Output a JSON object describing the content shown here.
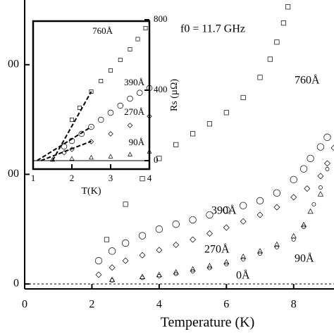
{
  "chart_data": [
    {
      "type": "scatter",
      "xlabel": "Temperature (K)",
      "xlim": [
        0,
        9.2
      ],
      "ylim": [
        0,
        2590
      ],
      "xticks": [
        0,
        2,
        4,
        6,
        8
      ],
      "yticks": [
        {
          "value": 0,
          "label": "0"
        },
        {
          "value": 1000,
          "label": "00"
        },
        {
          "value": 2000,
          "label": "00"
        }
      ],
      "annotations": [
        "f0 = 11.7 GHz",
        "760Å",
        "390Å",
        "270Å",
        "90Å",
        "0Å"
      ],
      "zero_line": 0,
      "series": [
        {
          "name": "760Å",
          "marker": "square",
          "x": [
            2.44,
            3,
            3.5,
            4,
            4.5,
            5,
            5.5,
            6,
            6.5,
            7,
            7.3,
            7.5,
            7.7,
            7.83
          ],
          "values": [
            405,
            727,
            960,
            1145,
            1270,
            1370,
            1460,
            1563,
            1700,
            1884,
            2050,
            2206,
            2380,
            2527
          ]
        },
        {
          "name": "390Å",
          "marker": "circle",
          "x": [
            2.2,
            2.6,
            3,
            3.5,
            4,
            4.5,
            5,
            5.5,
            6,
            6.5,
            7,
            7.5,
            8,
            8.3,
            8.5,
            8.8,
            9
          ],
          "values": [
            212,
            300,
            373,
            440,
            500,
            545,
            585,
            630,
            675,
            715,
            759,
            830,
            952,
            1050,
            1145,
            1250,
            1338
          ]
        },
        {
          "name": "270Å",
          "marker": "diamond",
          "x": [
            2.2,
            2.6,
            3,
            3.5,
            4,
            4.5,
            5,
            5.5,
            6,
            6.5,
            7,
            7.5,
            8,
            8.4,
            8.8,
            9.0,
            9.2
          ],
          "values": [
            84,
            150,
            212,
            262,
            309,
            357,
            405,
            460,
            514,
            570,
            630,
            700,
            791,
            870,
            984,
            1100,
            1241
          ]
        },
        {
          "name": "90Å",
          "marker": "triangle",
          "x": [
            2.6,
            3.5,
            4,
            4.5,
            5,
            5.5,
            6,
            6.5,
            7,
            7.5,
            8,
            8.3,
            8.5,
            8.8
          ],
          "values": [
            39,
            66,
            84,
            108,
            135,
            165,
            200,
            250,
            300,
            360,
            437,
            540,
            662,
            820
          ]
        },
        {
          "name": "0Å",
          "marker": "dot",
          "x": [
            2.6,
            3.5,
            4,
            4.5,
            5,
            5.5,
            6,
            6.5,
            7,
            7.5,
            8,
            8.3,
            8.6,
            8.8,
            9
          ],
          "values": [
            32,
            55,
            71,
            92,
            116,
            145,
            180,
            225,
            277,
            335,
            405,
            520,
            727,
            880,
            1048
          ]
        }
      ]
    },
    {
      "type": "scatter",
      "xlabel": "T(K)",
      "ylabel": "Rs (µΩ)",
      "xlim": [
        1,
        4
      ],
      "ylim": [
        -48,
        792
      ],
      "xticks": [
        1,
        2,
        3,
        4
      ],
      "yticks": [
        0,
        400,
        800
      ],
      "annotations": [
        "760Å",
        "390Å",
        "270Å",
        "90Å"
      ],
      "zero_line": 0,
      "fit_lines": [
        {
          "x": [
            1.5,
            2.5
          ],
          "values": [
            0,
            392
          ]
        },
        {
          "x": [
            1.1,
            2.5
          ],
          "values": [
            0,
            192
          ]
        },
        {
          "x": [
            1.2,
            2.5
          ],
          "values": [
            0,
            110
          ]
        }
      ],
      "series": [
        {
          "name": "760Å",
          "marker": "square",
          "x": [
            2.0,
            2.2,
            2.5,
            2.75,
            3,
            3.25,
            3.5,
            3.7,
            3.9
          ],
          "values": [
            232,
            300,
            392,
            452,
            512,
            572,
            632,
            690,
            752
          ]
        },
        {
          "name": "390Å",
          "marker": "circle",
          "x": [
            1.8,
            2,
            2.25,
            2.5,
            2.75,
            3,
            3.25,
            3.5,
            3.75,
            4
          ],
          "values": [
            80,
            112,
            152,
            192,
            232,
            272,
            312,
            352,
            385,
            412
          ]
        },
        {
          "name": "270Å",
          "marker": "diamond",
          "x": [
            1.8,
            2,
            2.5,
            3,
            3.5,
            4
          ],
          "values": [
            45,
            64,
            108,
            152,
            200,
            252
          ]
        },
        {
          "name": "90Å",
          "marker": "triangle",
          "x": [
            1.5,
            2,
            2.5,
            3,
            3.5,
            4
          ],
          "values": [
            6,
            12,
            18,
            24,
            36,
            52
          ]
        }
      ]
    }
  ]
}
